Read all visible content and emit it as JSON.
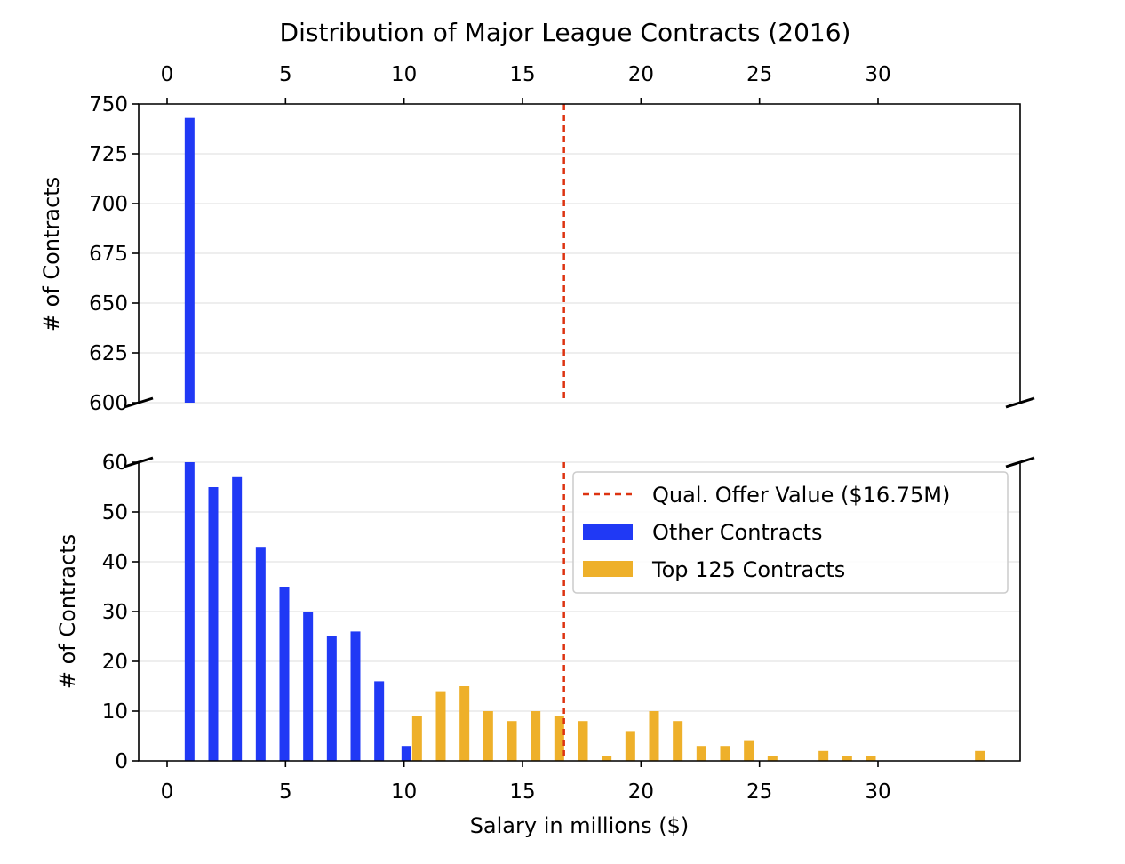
{
  "chart_data": {
    "type": "bar",
    "title": "Distribution of Major League Contracts (2016)",
    "xlabel": "Salary in millions ($)",
    "ylabel": "# of Contracts",
    "xlim": [
      -1.2,
      36
    ],
    "x_ticks": [
      0,
      5,
      10,
      15,
      20,
      25,
      30
    ],
    "broken_y_axis": true,
    "upper_panel": {
      "ylim": [
        600,
        750
      ],
      "y_ticks": [
        600,
        625,
        650,
        675,
        700,
        725,
        750
      ]
    },
    "lower_panel": {
      "ylim": [
        0,
        60
      ],
      "y_ticks": [
        0,
        10,
        20,
        30,
        40,
        50,
        60
      ]
    },
    "grid": "horizontal",
    "legend_position": "upper-right",
    "reference_line": {
      "label": "Qual. Offer Value ($16.75M)",
      "x": 16.75,
      "color": "#dd3311",
      "style": "dashed"
    },
    "series": [
      {
        "name": "Other Contracts",
        "color": "#2039f5",
        "x": [
          0.95,
          1.95,
          2.95,
          3.95,
          4.95,
          5.95,
          6.95,
          7.95,
          8.95,
          10.1
        ],
        "values": [
          743,
          55,
          57,
          43,
          35,
          30,
          25,
          26,
          16,
          3
        ]
      },
      {
        "name": "Top 125 Contracts",
        "color": "#eeb02a",
        "x": [
          10.55,
          11.55,
          12.55,
          13.55,
          14.55,
          15.55,
          16.55,
          17.55,
          18.55,
          19.55,
          20.55,
          21.55,
          22.55,
          23.55,
          24.55,
          25.55,
          27.7,
          28.7,
          29.7,
          34.3
        ],
        "values": [
          9,
          14,
          15,
          10,
          8,
          10,
          9,
          8,
          1,
          6,
          10,
          8,
          3,
          3,
          4,
          1,
          2,
          1,
          1,
          2
        ]
      }
    ]
  }
}
